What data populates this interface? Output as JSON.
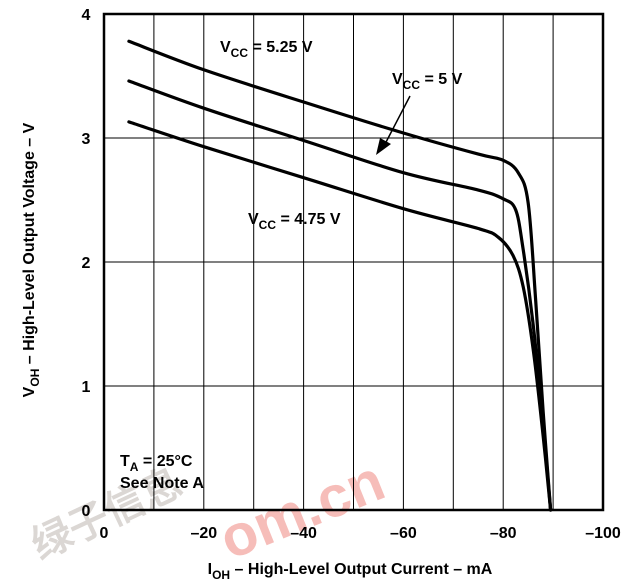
{
  "chart_data": {
    "type": "line",
    "xlabel_main": "I",
    "xlabel_sub": "OH",
    "xlabel_rest": " – High-Level Output Current – mA",
    "ylabel_main": "V",
    "ylabel_sub": "OH",
    "ylabel_rest": " – High-Level Output Voltage – V",
    "xlim": [
      0,
      -100
    ],
    "ylim": [
      0,
      4
    ],
    "xticks": [
      0,
      -20,
      -40,
      -60,
      -80,
      -100
    ],
    "xtick_labels": [
      "0",
      "–20",
      "–40",
      "–60",
      "–80",
      "–100"
    ],
    "yticks": [
      0,
      1,
      2,
      3,
      4
    ],
    "ytick_labels": [
      "0",
      "1",
      "2",
      "3",
      "4"
    ],
    "grid": true,
    "series": [
      {
        "name": "VCC = 5.25 V",
        "label_main": "V",
        "label_sub": "CC",
        "label_rest": " = 5.25 V",
        "x": [
          -5,
          -20,
          -40,
          -60,
          -75,
          -80,
          -83,
          -85,
          -86.5,
          -88,
          -89.5
        ],
        "y": [
          3.78,
          3.55,
          3.29,
          3.04,
          2.87,
          2.82,
          2.72,
          2.48,
          1.7,
          0.8,
          0
        ]
      },
      {
        "name": "VCC = 5 V",
        "label_main": "V",
        "label_sub": "CC",
        "label_rest": " = 5 V",
        "x": [
          -5,
          -20,
          -40,
          -60,
          -75,
          -80,
          -82.5,
          -84,
          -86,
          -88,
          -89.5
        ],
        "y": [
          3.46,
          3.24,
          2.98,
          2.72,
          2.58,
          2.51,
          2.42,
          2.1,
          1.5,
          0.7,
          0
        ]
      },
      {
        "name": "VCC = 4.75 V",
        "label_main": "V",
        "label_sub": "CC",
        "label_rest": " = 4.75 V",
        "x": [
          -5,
          -20,
          -40,
          -60,
          -75,
          -79,
          -82,
          -84,
          -86,
          -88,
          -89.5
        ],
        "y": [
          3.13,
          2.93,
          2.68,
          2.43,
          2.27,
          2.2,
          2.05,
          1.8,
          1.3,
          0.6,
          0
        ]
      }
    ],
    "annotations": {
      "ta_main": "T",
      "ta_sub": "A",
      "ta_rest": " = 25°C",
      "note": "See Note A"
    }
  }
}
